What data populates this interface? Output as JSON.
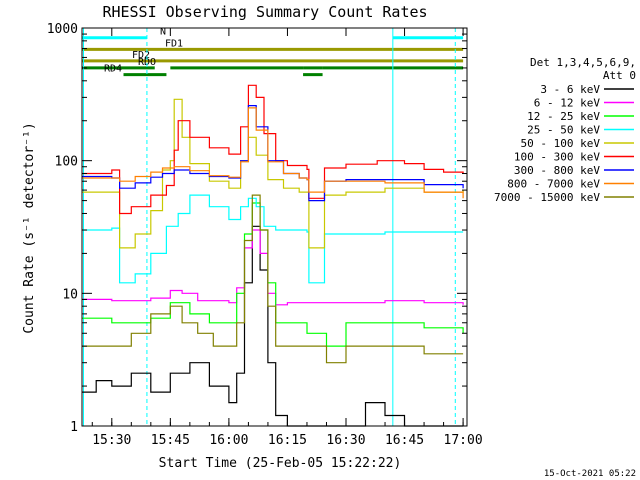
{
  "chart_data": {
    "type": "line",
    "title": "RHESSI Observing Summary Count Rates",
    "xlabel": "Start Time (25-Feb-05 15:22:22)",
    "ylabel": "Count Rate (s⁻¹ detector⁻¹)",
    "footer_date": "15-Oct-2021 05:22",
    "x_scale": "time",
    "y_scale": "log",
    "ylim": [
      1,
      1000
    ],
    "xlim": [
      "15:22:22",
      "17:01"
    ],
    "grid": false,
    "legend_position": "right",
    "x_ticks": [
      "15:30",
      "15:45",
      "16:00",
      "16:15",
      "16:30",
      "16:45",
      "17:00"
    ],
    "y_ticks": [
      "1",
      "10",
      "100",
      "1000"
    ],
    "legend_header": [
      "Det 1,3,4,5,6,9,",
      "Att 0"
    ],
    "flags": [
      {
        "name": "N",
        "color": "#00ffff",
        "y": 845,
        "segments": [
          [
            "15:22:22",
            "15:39"
          ],
          [
            "16:42",
            "17:00"
          ]
        ]
      },
      {
        "name": "FD1",
        "color": "#999900",
        "y": 690,
        "segments": [
          [
            "15:22:22",
            "17:00"
          ]
        ]
      },
      {
        "name": "FD2",
        "color": "#999900",
        "y": 565,
        "segments": [
          [
            "15:22:22",
            "17:00"
          ]
        ]
      },
      {
        "name": "RDO",
        "color": "#008000",
        "y": 500,
        "segments": [
          [
            "15:22:22",
            "15:41"
          ],
          [
            "15:45",
            "16:19"
          ],
          [
            "16:19",
            "16:24"
          ],
          [
            "16:24",
            "17:00"
          ]
        ]
      },
      {
        "name": "RD4",
        "color": "#008000",
        "y": 445,
        "segments": [
          [
            "15:33",
            "15:44"
          ],
          [
            "16:19",
            "16:24"
          ]
        ]
      }
    ],
    "vlines": [
      {
        "x": "15:22:45",
        "color": "#00ffff",
        "style": "solid"
      },
      {
        "x": "15:39",
        "color": "#00ffff",
        "style": "dashed"
      },
      {
        "x": "16:42",
        "color": "#00ffff",
        "style": "solid"
      },
      {
        "x": "16:58",
        "color": "#00ffff",
        "style": "dashed"
      }
    ],
    "series": [
      {
        "name": "3 - 6 keV",
        "color": "#000000",
        "x": [
          "15:22:22",
          "15:26",
          "15:30",
          "15:35",
          "15:40",
          "15:45",
          "15:50",
          "15:55",
          "16:00",
          "16:02",
          "16:04",
          "16:06",
          "16:08",
          "16:10",
          "16:12",
          "16:15",
          "16:20",
          "16:25",
          "16:30",
          "16:35",
          "16:40",
          "16:45",
          "16:50",
          "16:55",
          "17:00"
        ],
        "y": [
          1.8,
          2.2,
          2.0,
          2.5,
          1.8,
          2.5,
          3.0,
          2.0,
          1.5,
          2.5,
          12,
          32,
          15,
          3,
          1.2,
          1.0,
          1.0,
          1.0,
          1.0,
          1.5,
          1.2,
          1.0,
          1.0,
          1.0,
          1.0
        ]
      },
      {
        "name": "6 - 12 keV",
        "color": "#ff00ff",
        "x": [
          "15:22:22",
          "15:30",
          "15:40",
          "15:45",
          "15:48",
          "15:52",
          "15:56",
          "16:00",
          "16:02",
          "16:04",
          "16:06",
          "16:08",
          "16:10",
          "16:12",
          "16:15",
          "16:20",
          "16:30",
          "16:40",
          "16:50",
          "17:00"
        ],
        "y": [
          9,
          8.8,
          9.2,
          10.5,
          10,
          8.8,
          8.8,
          8.5,
          11,
          22,
          30,
          20,
          10,
          8.2,
          8.5,
          8.5,
          8.5,
          8.8,
          8.5,
          8.2
        ]
      },
      {
        "name": "12 - 25 keV",
        "color": "#00ff00",
        "x": [
          "15:22:22",
          "15:30",
          "15:40",
          "15:45",
          "15:50",
          "15:55",
          "16:00",
          "16:02",
          "16:04",
          "16:06",
          "16:08",
          "16:10",
          "16:12",
          "16:15",
          "16:20",
          "16:25",
          "16:30",
          "16:40",
          "16:50",
          "17:00"
        ],
        "y": [
          6.5,
          6,
          6.5,
          8.5,
          7,
          6,
          6,
          10,
          28,
          48,
          30,
          12,
          6,
          6,
          5,
          4,
          6,
          6,
          5.5,
          5
        ]
      },
      {
        "name": "25 - 50 keV",
        "color": "#00ffff",
        "x": [
          "15:22:22",
          "15:30",
          "15:32",
          "15:36",
          "15:40",
          "15:44",
          "15:47",
          "15:50",
          "15:55",
          "16:00",
          "16:03",
          "16:05",
          "16:07",
          "16:09",
          "16:12",
          "16:15",
          "16:20",
          "16:20:30",
          "16:24",
          "16:24:30",
          "16:30",
          "16:40",
          "16:50",
          "17:00"
        ],
        "y": [
          30,
          31,
          12,
          14,
          20,
          32,
          40,
          55,
          45,
          36,
          45,
          52,
          45,
          32,
          30,
          30,
          29,
          12,
          12,
          28,
          28,
          29,
          29,
          29
        ]
      },
      {
        "name": "50 - 100 keV",
        "color": "#c8c800",
        "x": [
          "15:22:22",
          "15:30",
          "15:32",
          "15:36",
          "15:40",
          "15:43",
          "15:45",
          "15:46",
          "15:48",
          "15:50",
          "15:55",
          "16:00",
          "16:03",
          "16:05",
          "16:07",
          "16:10",
          "16:14",
          "16:18",
          "16:20",
          "16:20:30",
          "16:24",
          "16:24:30",
          "16:30",
          "16:40",
          "16:50",
          "17:00"
        ],
        "y": [
          58,
          58,
          22,
          28,
          42,
          85,
          100,
          290,
          150,
          95,
          70,
          62,
          100,
          150,
          110,
          72,
          62,
          58,
          58,
          22,
          22,
          55,
          58,
          62,
          58,
          60
        ]
      },
      {
        "name": "100 - 300 keV",
        "color": "#ff0000",
        "x": [
          "15:22:22",
          "15:30",
          "15:32",
          "15:35",
          "15:40",
          "15:44",
          "15:46",
          "15:47",
          "15:50",
          "15:55",
          "16:00",
          "16:03",
          "16:05",
          "16:07",
          "16:09",
          "16:12",
          "16:15",
          "16:20",
          "16:20:30",
          "16:24",
          "16:24:30",
          "16:30",
          "16:38",
          "16:45",
          "16:50",
          "16:55",
          "17:00"
        ],
        "y": [
          80,
          85,
          40,
          45,
          55,
          65,
          120,
          200,
          150,
          125,
          112,
          180,
          370,
          300,
          160,
          100,
          92,
          86,
          52,
          52,
          88,
          94,
          100,
          95,
          86,
          82,
          80
        ]
      },
      {
        "name": "300 - 800 keV",
        "color": "#0000ff",
        "x": [
          "15:22:22",
          "15:30",
          "15:32",
          "15:36",
          "15:40",
          "15:43",
          "15:46",
          "15:50",
          "15:55",
          "16:00",
          "16:03",
          "16:05",
          "16:07",
          "16:10",
          "16:14",
          "16:18",
          "16:20",
          "16:20:30",
          "16:24",
          "16:24:30",
          "16:30",
          "16:40",
          "16:50",
          "17:00"
        ],
        "y": [
          76,
          74,
          62,
          68,
          75,
          80,
          85,
          80,
          76,
          74,
          100,
          260,
          180,
          100,
          80,
          74,
          72,
          50,
          50,
          70,
          72,
          72,
          66,
          62
        ]
      },
      {
        "name": "800 - 7000 keV",
        "color": "#ff8000",
        "x": [
          "15:22:22",
          "15:30",
          "15:32",
          "15:36",
          "15:40",
          "15:43",
          "15:46",
          "15:50",
          "15:55",
          "16:00",
          "16:03",
          "16:05",
          "16:07",
          "16:10",
          "16:14",
          "16:18",
          "16:20",
          "16:20:30",
          "16:24",
          "16:24:30",
          "16:30",
          "16:40",
          "16:50",
          "17:00"
        ],
        "y": [
          74,
          74,
          70,
          76,
          82,
          88,
          90,
          84,
          77,
          75,
          98,
          250,
          170,
          98,
          80,
          74,
          72,
          58,
          58,
          70,
          70,
          68,
          58,
          52
        ]
      },
      {
        "name": "7000 - 15000 keV",
        "color": "#808000",
        "x": [
          "15:22:22",
          "15:30",
          "15:35",
          "15:40",
          "15:45",
          "15:48",
          "15:52",
          "15:56",
          "16:00",
          "16:02",
          "16:04",
          "16:06",
          "16:08",
          "16:10",
          "16:12",
          "16:15",
          "16:20",
          "16:25",
          "16:30",
          "16:40",
          "16:50",
          "17:00"
        ],
        "y": [
          4,
          4,
          5,
          7,
          8,
          6,
          5,
          4,
          4,
          6,
          25,
          55,
          30,
          8,
          4,
          4,
          4,
          3,
          4,
          4,
          3.5,
          3.5
        ]
      }
    ]
  }
}
